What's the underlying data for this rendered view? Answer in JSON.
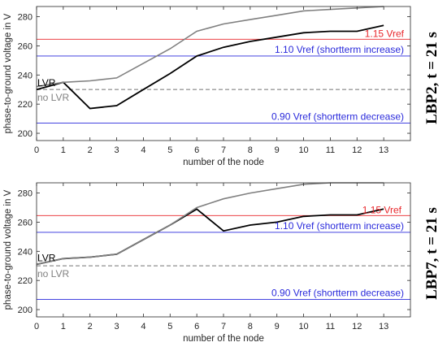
{
  "chart_data": [
    {
      "type": "line",
      "title": "",
      "side_label": "LBP2, t = 21 s",
      "xlabel": "number of the node",
      "ylabel": "phase-to-ground voltage in V",
      "xlim": [
        0,
        14
      ],
      "ylim": [
        195,
        287
      ],
      "xticks": [
        "0",
        "1",
        "2",
        "3",
        "4",
        "5",
        "6",
        "7",
        "8",
        "9",
        "10",
        "11",
        "12",
        "13"
      ],
      "yticks": [
        "200",
        "220",
        "240",
        "260",
        "280"
      ],
      "grid": false,
      "series": [
        {
          "name": "LVR",
          "color": "#000000",
          "x": [
            0,
            1,
            2,
            3,
            4,
            5,
            6,
            7,
            8,
            9,
            10,
            11,
            12,
            13
          ],
          "y": [
            230,
            235,
            217,
            219,
            230,
            241,
            253,
            259,
            263,
            266,
            269,
            270,
            270,
            274
          ]
        },
        {
          "name": "no LVR",
          "color": "#808080",
          "x": [
            0,
            1,
            2,
            3,
            4,
            5,
            6,
            7,
            8,
            9,
            10,
            11,
            12,
            13
          ],
          "y": [
            232,
            235,
            236,
            238,
            248,
            258,
            270,
            275,
            278,
            281,
            284,
            285,
            286,
            287
          ]
        }
      ],
      "reference_lines": [
        {
          "label": "1.15 Vref",
          "y": 264.5,
          "color": "#e8262b"
        },
        {
          "label": "1.10 Vref (shortterm increase)",
          "y": 253,
          "color": "#2a2adb"
        },
        {
          "label": "0.90 Vref (shortterm decrease)",
          "y": 207,
          "color": "#2a2adb"
        },
        {
          "label": "",
          "y": 230,
          "color": "#9a9a9a",
          "dashed": true
        }
      ]
    },
    {
      "type": "line",
      "title": "",
      "side_label": "LBP7, t = 21 s",
      "xlabel": "number of the node",
      "ylabel": "phase-to-ground voltage in V",
      "xlim": [
        0,
        14
      ],
      "ylim": [
        195,
        287
      ],
      "xticks": [
        "0",
        "1",
        "2",
        "3",
        "4",
        "5",
        "6",
        "7",
        "8",
        "9",
        "10",
        "11",
        "12",
        "13"
      ],
      "yticks": [
        "200",
        "220",
        "240",
        "260",
        "280"
      ],
      "grid": false,
      "series": [
        {
          "name": "LVR",
          "color": "#000000",
          "x": [
            0,
            1,
            2,
            3,
            4,
            5,
            6,
            7,
            8,
            9,
            10,
            11,
            12,
            13
          ],
          "y": [
            231,
            235,
            236,
            238,
            248,
            258,
            269,
            254,
            258,
            260,
            264,
            265,
            265,
            269
          ]
        },
        {
          "name": "no LVR",
          "color": "#808080",
          "x": [
            0,
            1,
            2,
            3,
            4,
            5,
            6,
            7,
            8,
            9,
            10,
            11,
            12,
            13
          ],
          "y": [
            231,
            235,
            236,
            238,
            248,
            258,
            270,
            276,
            280,
            283,
            286,
            287,
            287,
            288
          ]
        }
      ],
      "reference_lines": [
        {
          "label": "1.15 Vref",
          "y": 264.5,
          "color": "#e8262b"
        },
        {
          "label": "1.10 Vref (shortterm increase)",
          "y": 253,
          "color": "#2a2adb"
        },
        {
          "label": "0.90 Vref (shortterm decrease)",
          "y": 207,
          "color": "#2a2adb"
        },
        {
          "label": "",
          "y": 230,
          "color": "#9a9a9a",
          "dashed": true
        }
      ]
    }
  ]
}
